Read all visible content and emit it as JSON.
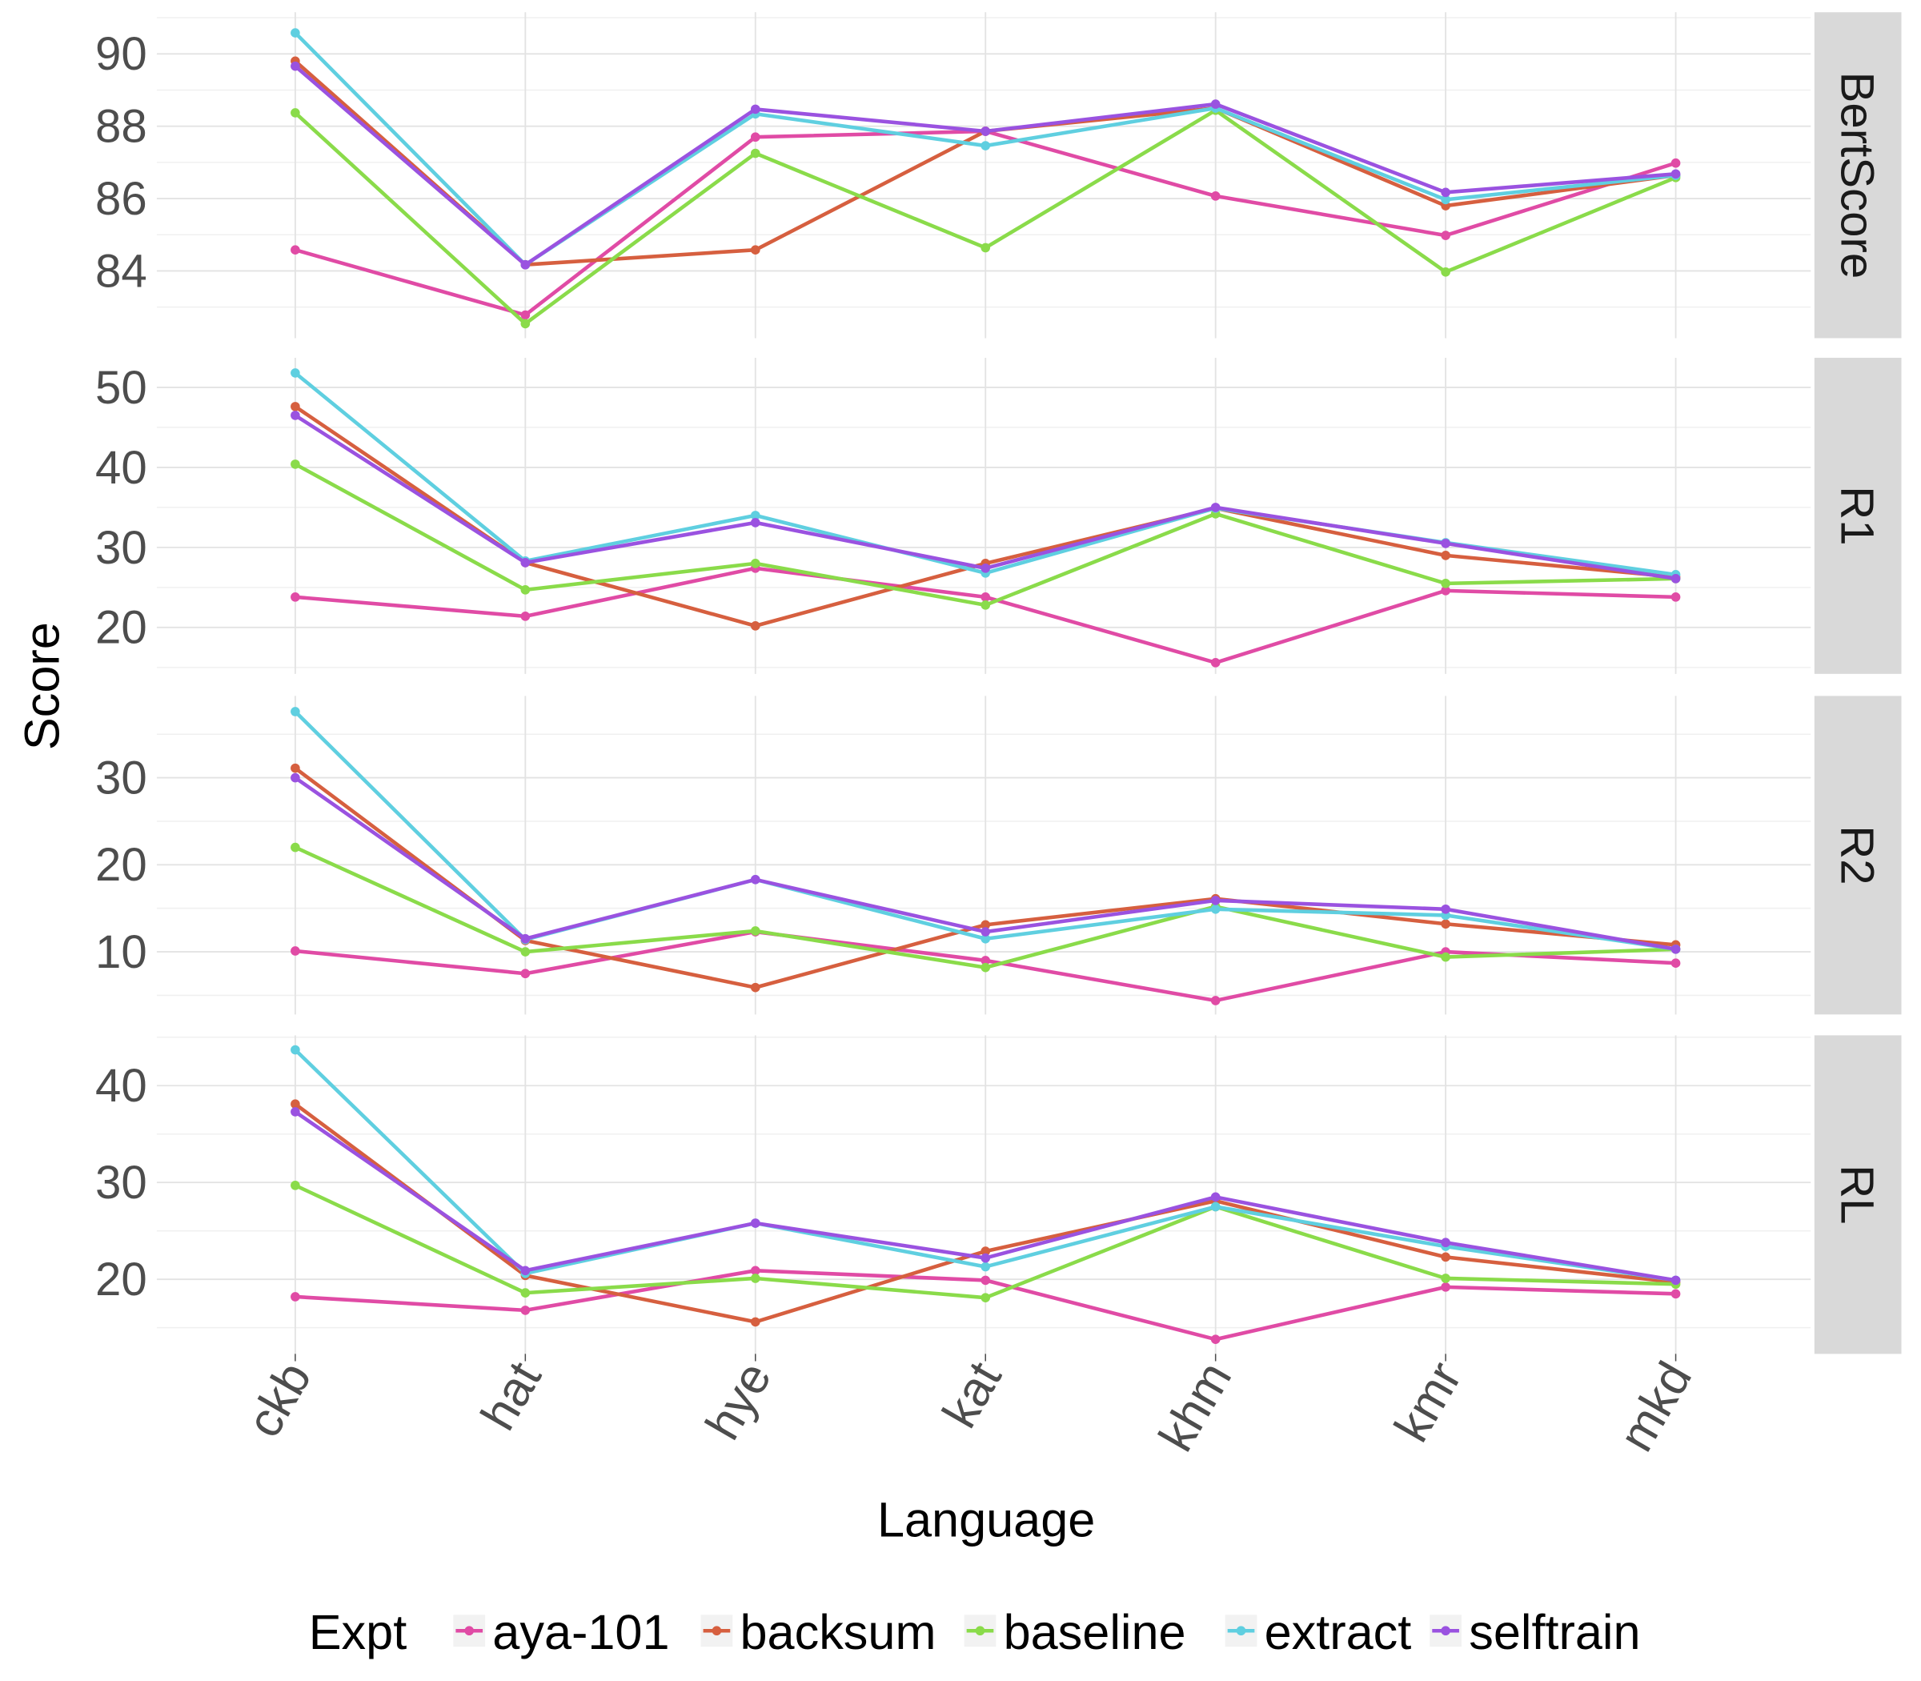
{
  "chart_data": {
    "type": "line",
    "facet": "rows",
    "xlabel": "Language",
    "ylabel": "Score",
    "categories": [
      "ckb",
      "hat",
      "hye",
      "kat",
      "khm",
      "kmr",
      "mkd"
    ],
    "legend": {
      "title": "Expt",
      "position": "bottom"
    },
    "grid": true,
    "series_colors": {
      "aya-101": "#E04BA5",
      "backsum": "#D65F3F",
      "baseline": "#8ADB4A",
      "extract": "#5FCFE0",
      "selftrain": "#9A52E0"
    },
    "panels": [
      {
        "strip": "BertScore",
        "ylim": [
          82.14,
          91.15
        ],
        "yticks": [
          84,
          86,
          88,
          90
        ],
        "series": [
          {
            "name": "aya-101",
            "values": [
              84.58,
              82.78,
              87.7,
              87.86,
              86.07,
              84.98,
              86.98
            ]
          },
          {
            "name": "backsum",
            "values": [
              89.8,
              84.17,
              84.58,
              87.86,
              88.5,
              85.8,
              86.64
            ]
          },
          {
            "name": "baseline",
            "values": [
              88.37,
              82.54,
              87.25,
              84.64,
              88.44,
              83.97,
              86.58
            ]
          },
          {
            "name": "extract",
            "values": [
              90.58,
              84.17,
              88.34,
              87.46,
              88.5,
              85.97,
              86.64
            ]
          },
          {
            "name": "selftrain",
            "values": [
              89.66,
              84.17,
              88.47,
              87.86,
              88.61,
              86.17,
              86.68
            ]
          }
        ]
      },
      {
        "strip": "R1",
        "ylim": [
          14.2,
          53.7
        ],
        "yticks": [
          20,
          30,
          40,
          50
        ],
        "series": [
          {
            "name": "aya-101",
            "values": [
              23.8,
              21.4,
              27.4,
              23.8,
              15.6,
              24.6,
              23.8
            ]
          },
          {
            "name": "backsum",
            "values": [
              47.6,
              28.1,
              20.2,
              28.0,
              34.9,
              29.0,
              26.3
            ]
          },
          {
            "name": "baseline",
            "values": [
              40.4,
              24.7,
              28.0,
              22.8,
              34.2,
              25.5,
              26.1
            ]
          },
          {
            "name": "extract",
            "values": [
              51.8,
              28.3,
              34.0,
              26.8,
              34.9,
              30.6,
              26.6
            ]
          },
          {
            "name": "selftrain",
            "values": [
              46.5,
              28.1,
              33.1,
              27.4,
              35.0,
              30.5,
              26.1
            ]
          }
        ]
      },
      {
        "strip": "R2",
        "ylim": [
          2.8,
          39.4
        ],
        "yticks": [
          10,
          20,
          30
        ],
        "series": [
          {
            "name": "aya-101",
            "values": [
              10.1,
              7.5,
              12.3,
              9.0,
              4.4,
              10.0,
              8.7
            ]
          },
          {
            "name": "backsum",
            "values": [
              31.1,
              11.3,
              5.9,
              13.1,
              16.1,
              13.2,
              10.8
            ]
          },
          {
            "name": "baseline",
            "values": [
              22.0,
              10.0,
              12.4,
              8.2,
              15.2,
              9.4,
              10.3
            ]
          },
          {
            "name": "extract",
            "values": [
              37.6,
              11.4,
              18.3,
              11.5,
              14.9,
              14.2,
              10.3
            ]
          },
          {
            "name": "selftrain",
            "values": [
              30.0,
              11.5,
              18.3,
              12.3,
              15.9,
              14.9,
              10.3
            ]
          }
        ]
      },
      {
        "strip": "RL",
        "ylim": [
          12.3,
          45.2
        ],
        "yticks": [
          20,
          30,
          40
        ],
        "series": [
          {
            "name": "aya-101",
            "values": [
              18.2,
              16.8,
              20.9,
              19.9,
              13.8,
              19.2,
              18.5
            ]
          },
          {
            "name": "backsum",
            "values": [
              38.1,
              20.4,
              15.6,
              22.9,
              28.1,
              22.3,
              19.7
            ]
          },
          {
            "name": "baseline",
            "values": [
              29.7,
              18.6,
              20.1,
              18.1,
              27.5,
              20.1,
              19.5
            ]
          },
          {
            "name": "extract",
            "values": [
              43.7,
              20.6,
              25.8,
              21.3,
              27.5,
              23.4,
              19.9
            ]
          },
          {
            "name": "selftrain",
            "values": [
              37.3,
              20.9,
              25.8,
              22.2,
              28.5,
              23.8,
              19.9
            ]
          }
        ]
      }
    ]
  }
}
